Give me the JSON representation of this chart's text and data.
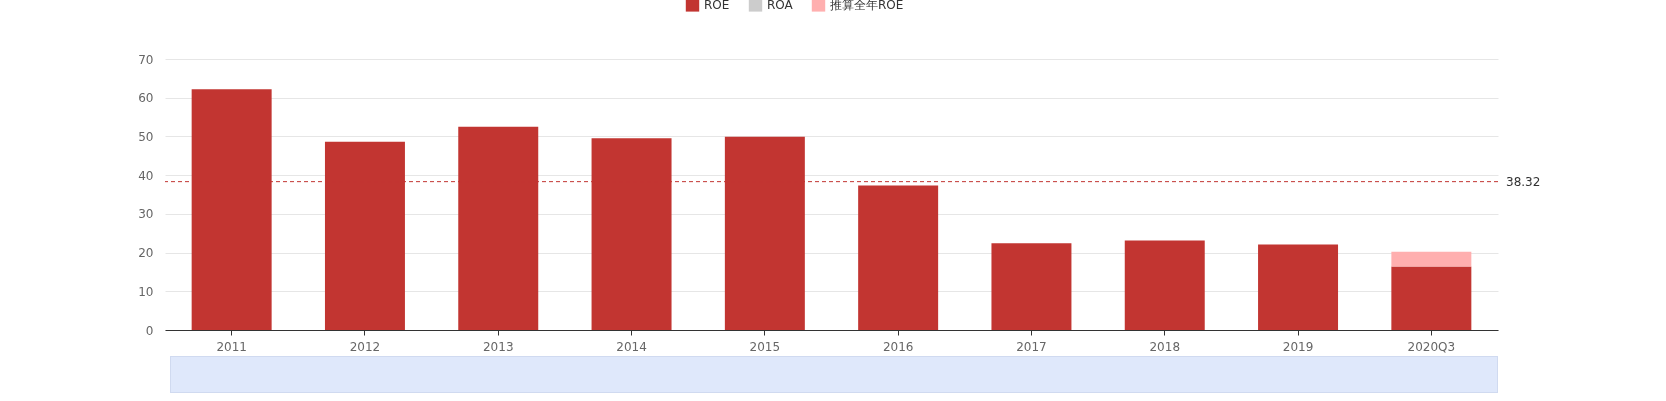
{
  "chart_data": {
    "type": "bar",
    "stacked": true,
    "categories": [
      "2011",
      "2012",
      "2013",
      "2014",
      "2015",
      "2016",
      "2017",
      "2018",
      "2019",
      "2020Q3"
    ],
    "series": [
      {
        "name": "ROE",
        "color": "#c23531",
        "values": [
          62.2,
          48.6,
          52.5,
          49.5,
          49.9,
          37.3,
          22.4,
          23.1,
          22.1,
          16.4
        ]
      },
      {
        "name": "ROA",
        "color": "#cccccc",
        "values": [
          null,
          null,
          null,
          null,
          null,
          null,
          null,
          null,
          null,
          null
        ]
      },
      {
        "name": "推算全年ROE",
        "color": "#ffafaf",
        "values": [
          null,
          null,
          null,
          null,
          null,
          null,
          null,
          null,
          null,
          3.8
        ]
      }
    ],
    "ylim": [
      0,
      70
    ],
    "yticks": [
      0,
      10,
      20,
      30,
      40,
      50,
      60,
      70
    ],
    "grid": "y",
    "legend": "top",
    "ref_lines": [
      {
        "axis": "y",
        "value": 38.32,
        "label": "38.32",
        "color": "#c23531",
        "line_style": "dashed"
      }
    ]
  }
}
